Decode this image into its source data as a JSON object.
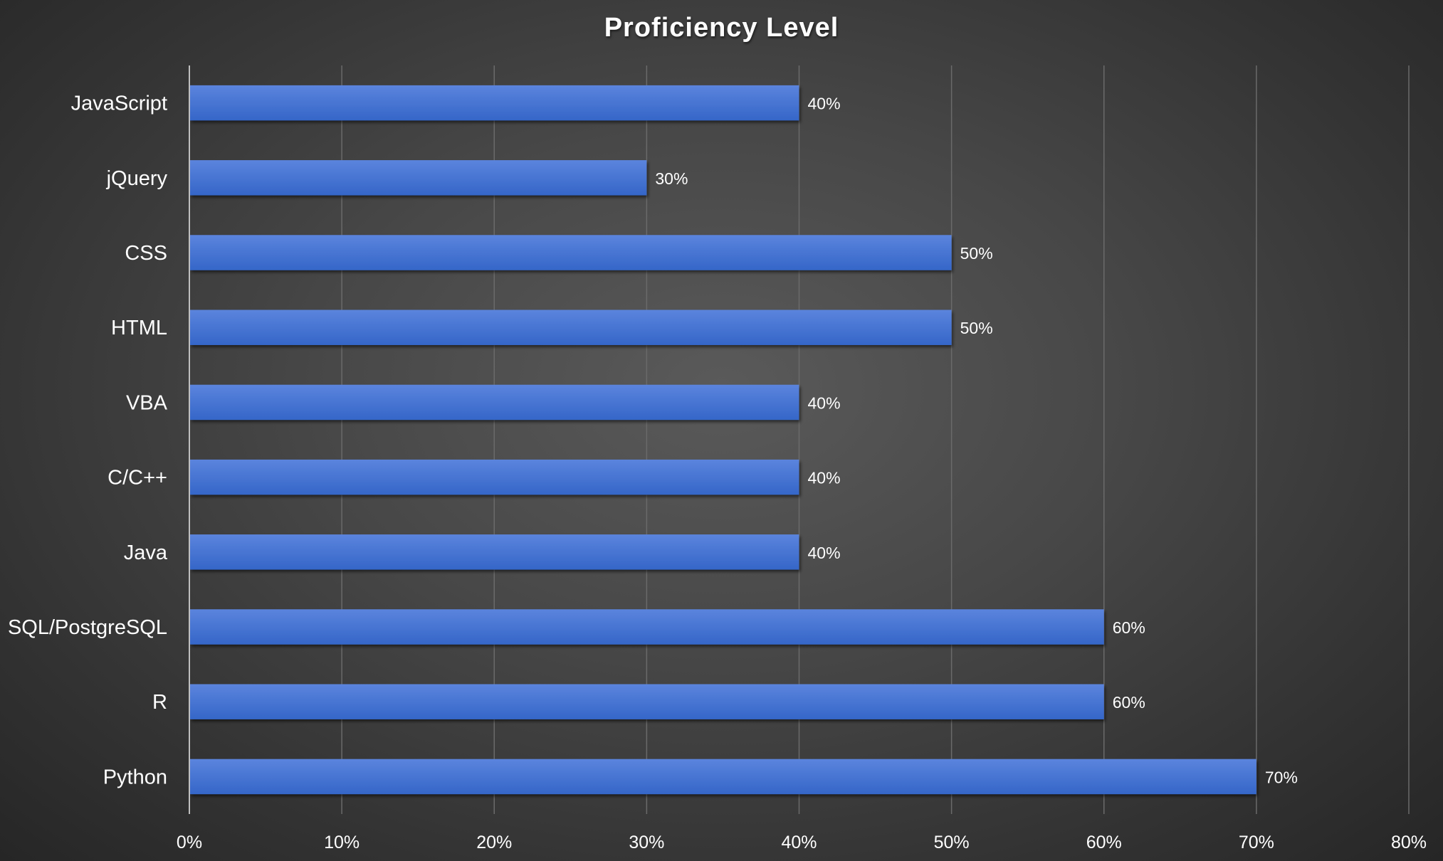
{
  "chart_data": {
    "type": "bar",
    "orientation": "horizontal",
    "title": "Proficiency Level",
    "categories": [
      "JavaScript",
      "jQuery",
      "CSS",
      "HTML",
      "VBA",
      "C/C++",
      "Java",
      "SQL/PostgreSQL",
      "R",
      "Python"
    ],
    "values": [
      40,
      30,
      50,
      50,
      40,
      40,
      40,
      60,
      60,
      70
    ],
    "data_labels": [
      "40%",
      "30%",
      "50%",
      "50%",
      "40%",
      "40%",
      "40%",
      "60%",
      "60%",
      "70%"
    ],
    "xlim": [
      0,
      80
    ],
    "x_ticks": [
      0,
      10,
      20,
      30,
      40,
      50,
      60,
      70,
      80
    ],
    "x_tick_labels": [
      "0%",
      "10%",
      "20%",
      "30%",
      "40%",
      "50%",
      "60%",
      "70%",
      "80%"
    ],
    "xlabel": "",
    "ylabel": "",
    "grid": "vertical",
    "legend": "none",
    "colors": {
      "bar_top": "#5b84dd",
      "bar_bottom": "#3566c8",
      "background": "#474747",
      "text": "#ffffff"
    }
  }
}
